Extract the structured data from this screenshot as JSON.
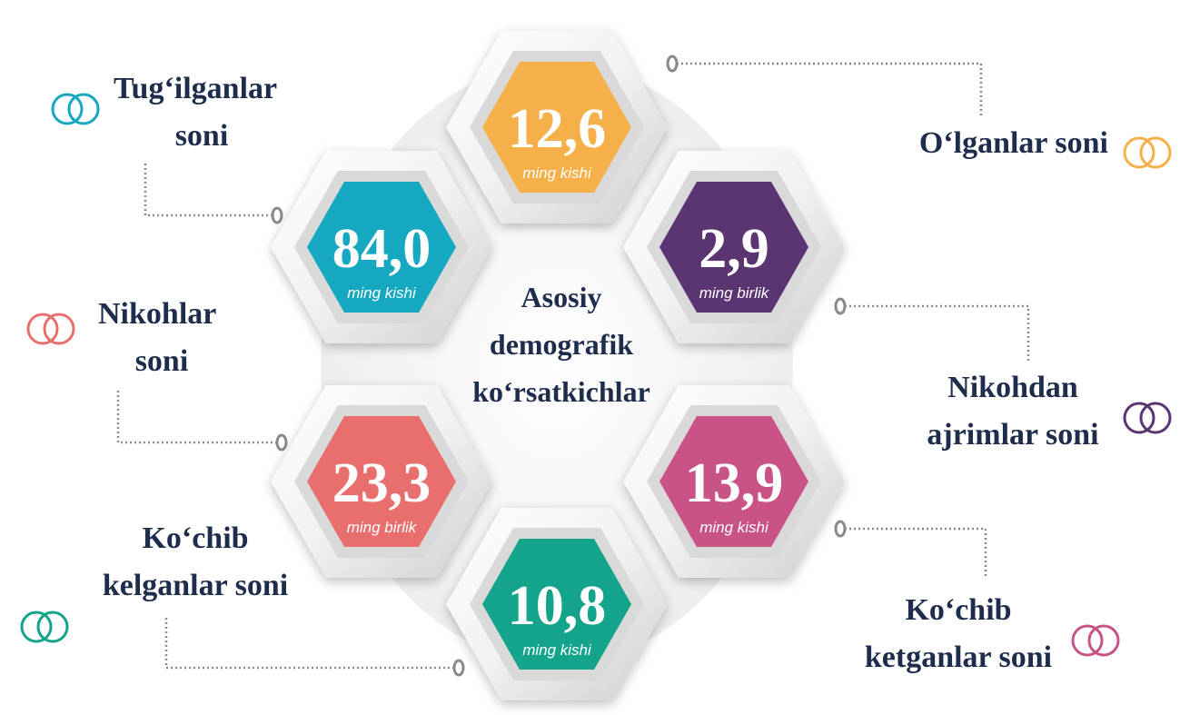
{
  "center_title": [
    "Asosiy",
    "demografik",
    "ko‘rsatkichlar"
  ],
  "items": [
    {
      "value": "12,6",
      "unit": "ming kishi",
      "label": [
        "O‘lganlar soni"
      ],
      "color": "#f5b04a"
    },
    {
      "value": "84,0",
      "unit": "ming kishi",
      "label": [
        "Tug‘ilganlar",
        "soni"
      ],
      "color": "#17a8c1"
    },
    {
      "value": "2,9",
      "unit": "ming birlik",
      "label": [
        "Nikohdan",
        "ajrimlar soni"
      ],
      "color": "#5b3472"
    },
    {
      "value": "23,3",
      "unit": "ming birlik",
      "label": [
        "Nikohlar",
        "soni"
      ],
      "color": "#e86f6e"
    },
    {
      "value": "13,9",
      "unit": "ming kishi",
      "label": [
        "Ko‘chib",
        "ketganlar soni"
      ],
      "color": "#c95286"
    },
    {
      "value": "10,8",
      "unit": "ming kishi",
      "label": [
        "Ko‘chib",
        "kelganlar soni"
      ],
      "color": "#14a38b"
    }
  ]
}
